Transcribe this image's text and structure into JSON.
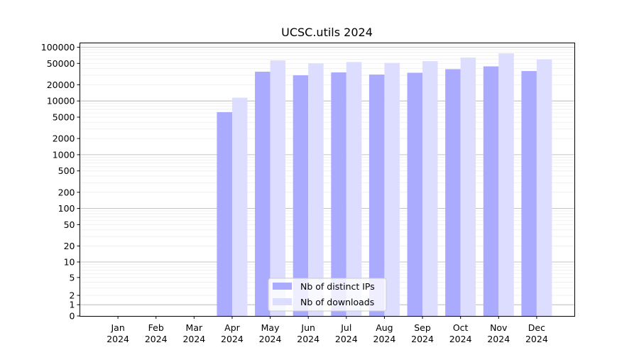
{
  "chart_data": {
    "type": "bar",
    "title": "UCSC.utils 2024",
    "xlabel": "",
    "ylabel": "",
    "yscale": "symlog",
    "ylim": [
      0,
      120000
    ],
    "yticks": [
      0,
      1,
      2,
      5,
      10,
      20,
      50,
      100,
      200,
      500,
      1000,
      2000,
      5000,
      10000,
      20000,
      50000,
      100000
    ],
    "categories": [
      "Jan\n2024",
      "Feb\n2024",
      "Mar\n2024",
      "Apr\n2024",
      "May\n2024",
      "Jun\n2024",
      "Jul\n2024",
      "Aug\n2024",
      "Sep\n2024",
      "Oct\n2024",
      "Nov\n2024",
      "Dec\n2024"
    ],
    "series": [
      {
        "name": "Nb of distinct IPs",
        "color": "#aaaaff",
        "values": [
          0,
          0,
          0,
          6200,
          35000,
          30000,
          34000,
          31000,
          33500,
          39000,
          44000,
          36000
        ]
      },
      {
        "name": "Nb of downloads",
        "color": "#ddddff",
        "values": [
          0,
          0,
          0,
          11500,
          57000,
          50000,
          53000,
          51000,
          55000,
          64000,
          77000,
          59000
        ]
      }
    ],
    "grid": true,
    "legend": "bottom-center"
  }
}
